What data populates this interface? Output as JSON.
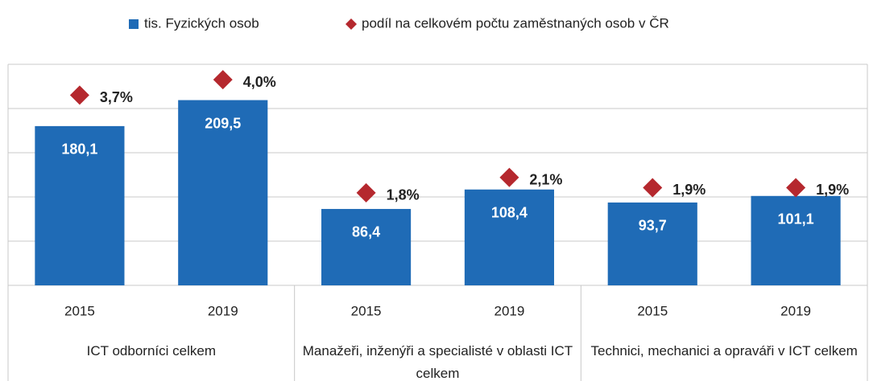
{
  "chart_data": {
    "type": "bar",
    "categories": [
      "2015",
      "2019",
      "2015",
      "2019",
      "2015",
      "2019"
    ],
    "groups": [
      "ICT odborníci celkem",
      "Manažeři, inženýři a specialisté v oblasti ICT celkem",
      "Technici, mechanici a opraváři v ICT celkem"
    ],
    "series": [
      {
        "name": "tis. Fyzických osob",
        "color": "#1f6bb6",
        "values": [
          180.1,
          209.5,
          86.4,
          108.4,
          93.7,
          101.1
        ],
        "value_labels": [
          "180,1",
          "209,5",
          "86,4",
          "108,4",
          "93,7",
          "101,1"
        ]
      },
      {
        "name": "podíl na celkovém počtu zaměstnaných osob v ČR",
        "color": "#b5282e",
        "axis": "y2",
        "values": [
          3.7,
          4.0,
          1.8,
          2.1,
          1.9,
          1.9
        ],
        "value_labels": [
          "3,7%",
          "4,0%",
          "1,8%",
          "2,1%",
          "1,9%",
          "1,9%"
        ]
      }
    ],
    "ylim": [
      0,
      250
    ],
    "yticks": [
      0,
      50,
      100,
      150,
      200,
      250
    ],
    "y2lim": [
      0,
      4.3
    ],
    "grid": true
  }
}
